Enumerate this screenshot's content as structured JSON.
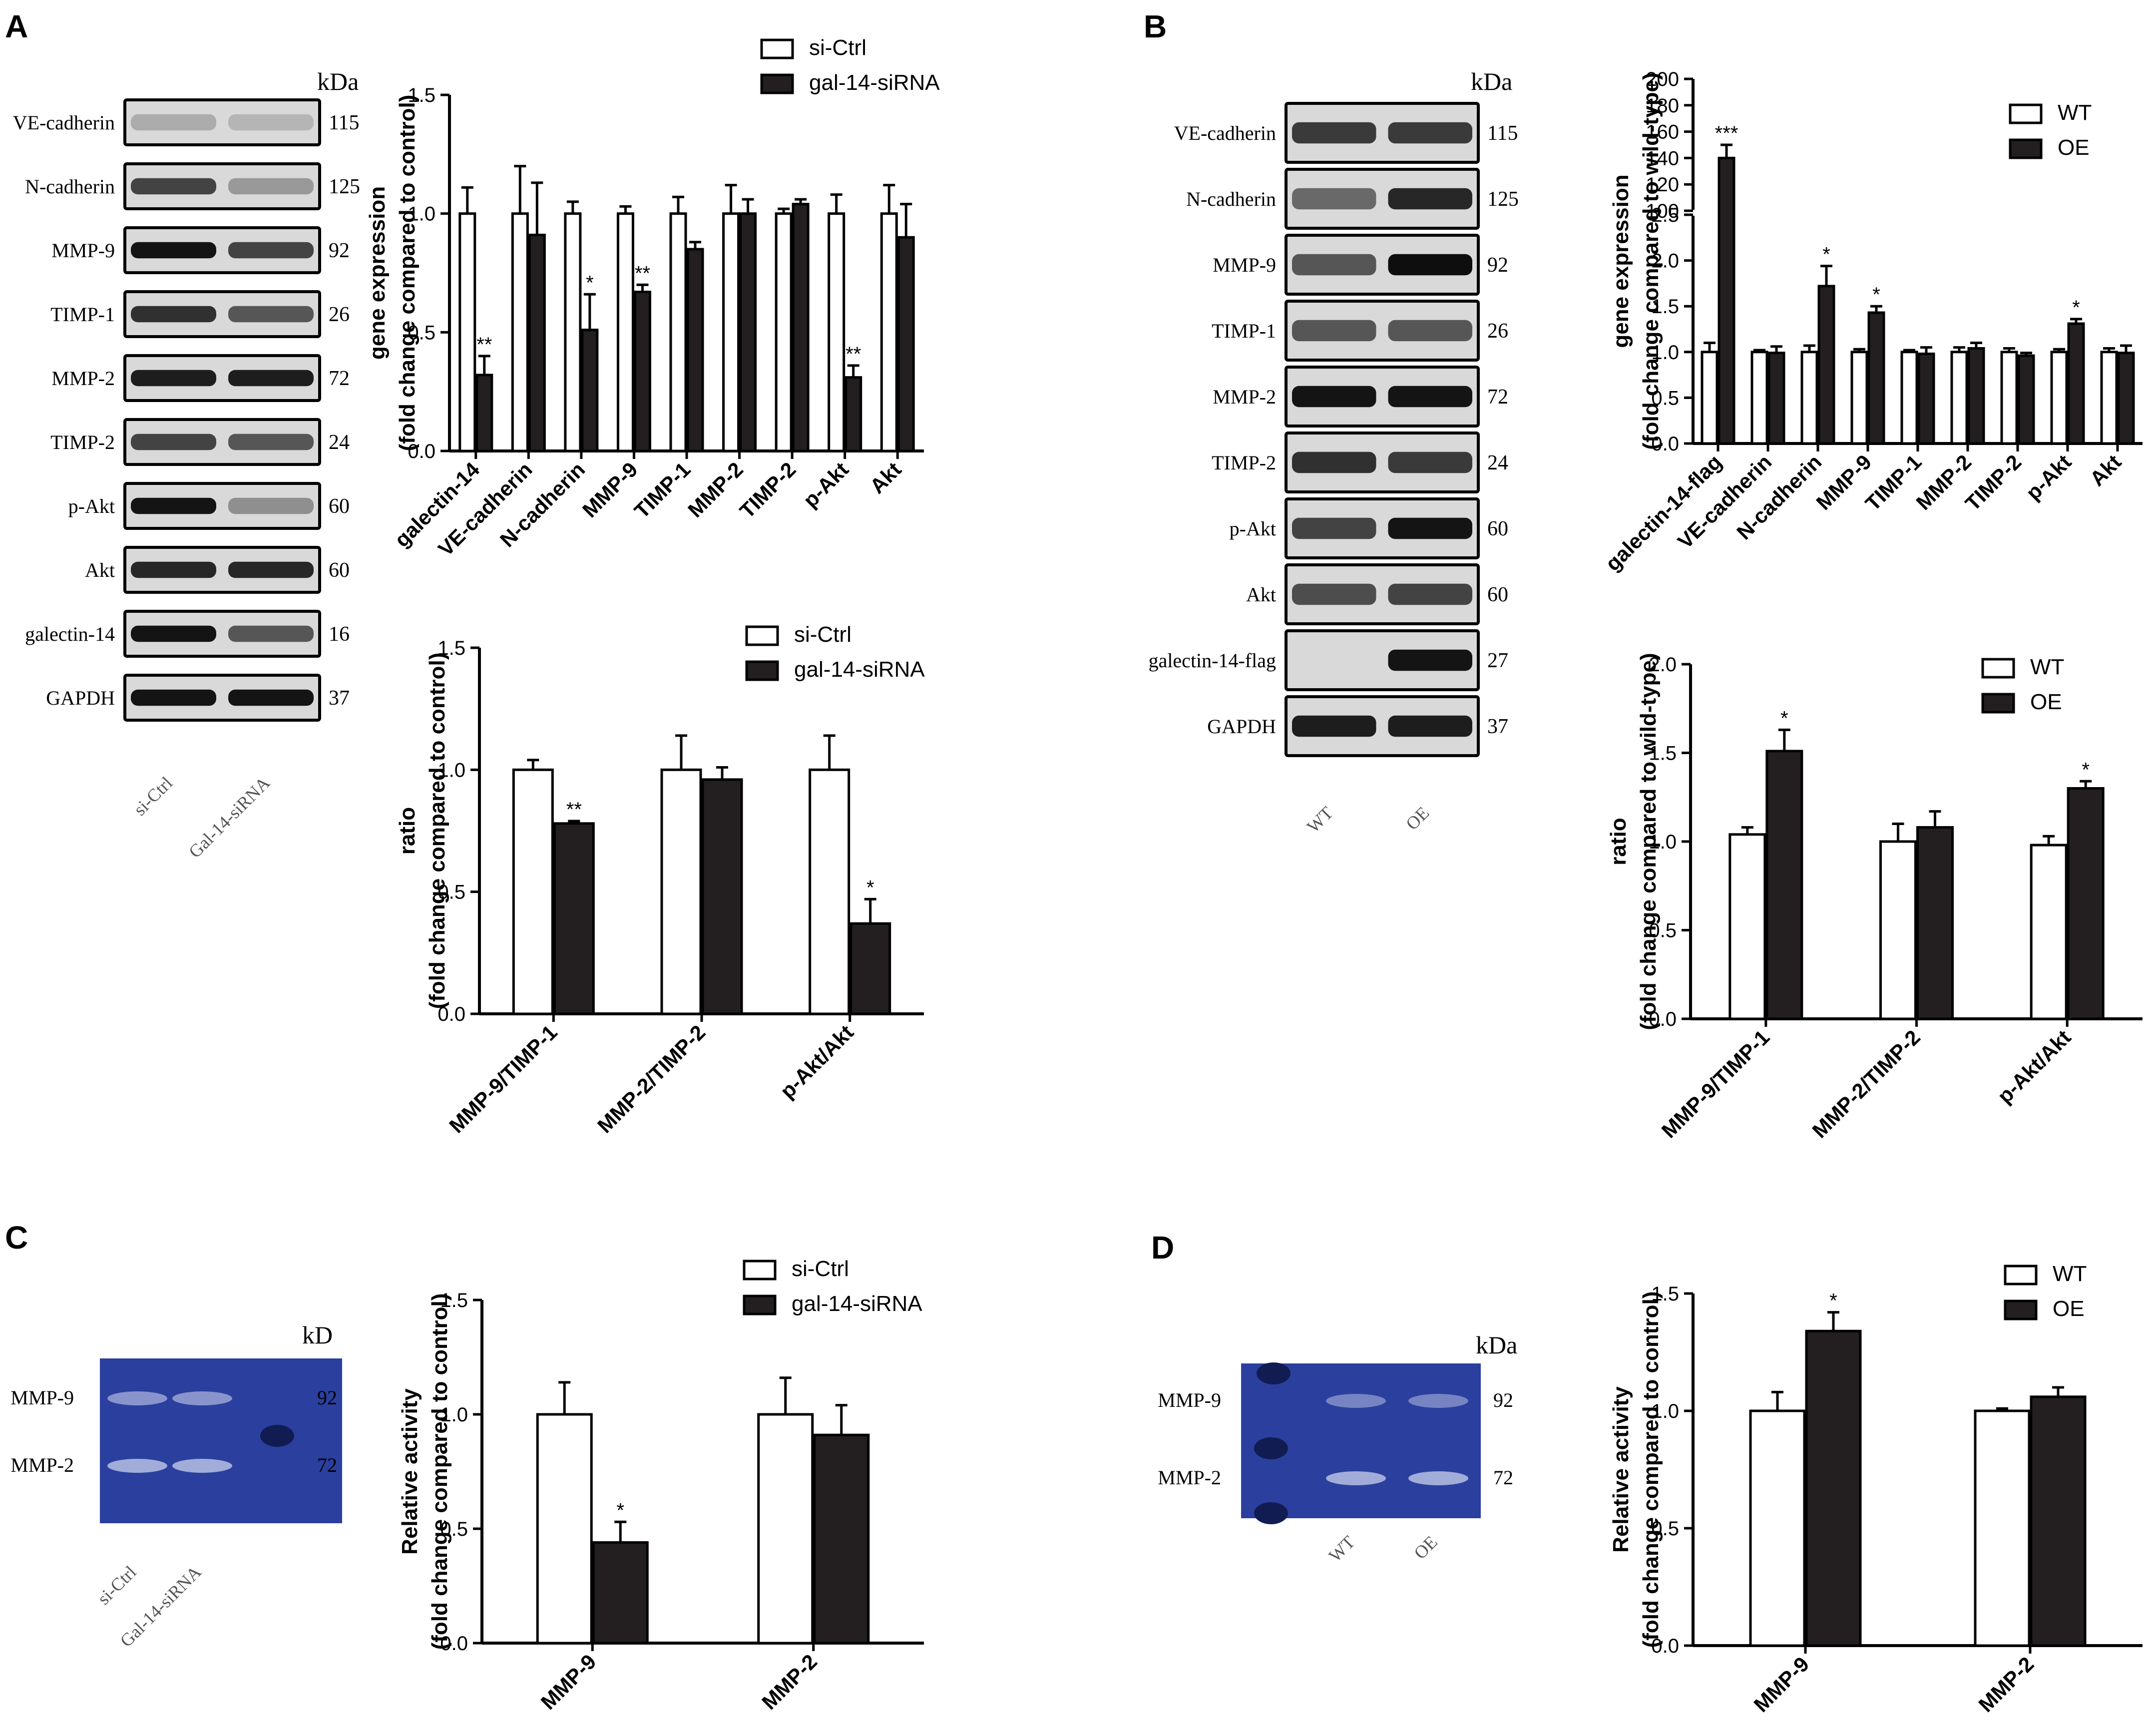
{
  "panel_labels": [
    "A",
    "B",
    "C",
    "D"
  ],
  "kda_label": "kDa",
  "kda_label_c": "kD",
  "blot_a": {
    "bands": [
      {
        "name": "VE-cadherin",
        "kda": "115"
      },
      {
        "name": "N-cadherin",
        "kda": "125"
      },
      {
        "name": "MMP-9",
        "kda": "92"
      },
      {
        "name": "TIMP-1",
        "kda": "26"
      },
      {
        "name": "MMP-2",
        "kda": "72"
      },
      {
        "name": "TIMP-2",
        "kda": "24"
      },
      {
        "name": "p-Akt",
        "kda": "60"
      },
      {
        "name": "Akt",
        "kda": "60"
      },
      {
        "name": "galectin-14",
        "kda": "16"
      },
      {
        "name": "GAPDH",
        "kda": "37"
      }
    ],
    "lanes": [
      "si-Ctrl",
      "Gal-14-siRNA"
    ]
  },
  "blot_b": {
    "bands": [
      {
        "name": "VE-cadherin",
        "kda": "115"
      },
      {
        "name": "N-cadherin",
        "kda": "125"
      },
      {
        "name": "MMP-9",
        "kda": "92"
      },
      {
        "name": "TIMP-1",
        "kda": "26"
      },
      {
        "name": "MMP-2",
        "kda": "72"
      },
      {
        "name": "TIMP-2",
        "kda": "24"
      },
      {
        "name": "p-Akt",
        "kda": "60"
      },
      {
        "name": "Akt",
        "kda": "60"
      },
      {
        "name": "galectin-14-flag",
        "kda": "27"
      },
      {
        "name": "GAPDH",
        "kda": "37"
      }
    ],
    "lanes": [
      "WT",
      "OE"
    ]
  },
  "zymo_c": {
    "bands": [
      {
        "name": "MMP-9",
        "kda": "92"
      },
      {
        "name": "MMP-2",
        "kda": "72"
      }
    ],
    "lanes": [
      "si-Ctrl",
      "Gal-14-siRNA"
    ]
  },
  "zymo_d": {
    "bands": [
      {
        "name": "MMP-9",
        "kda": "92"
      },
      {
        "name": "MMP-2",
        "kda": "72"
      }
    ],
    "lanes": [
      "WT",
      "OE"
    ]
  },
  "colors": {
    "open_bar": "#ffffff",
    "filled_bar": "#231f20",
    "axis": "#000000",
    "zymo_bg": "#2b3f9e",
    "zymo_band": "#a9b2dc"
  },
  "chart_data": [
    {
      "id": "A-top",
      "type": "bar",
      "ylabel": [
        "gene expression",
        "(fold change compared to control)"
      ],
      "ylim": [
        0,
        1.5
      ],
      "yticks": [
        "0.0",
        "0.5",
        "1.0",
        "1.5"
      ],
      "categories": [
        "galectin-14",
        "VE-cadherin",
        "N-cadherin",
        "MMP-9",
        "TIMP-1",
        "MMP-2",
        "TIMP-2",
        "p-Akt",
        "Akt"
      ],
      "series": [
        {
          "name": "si-Ctrl",
          "values": [
            1.0,
            1.0,
            1.0,
            1.0,
            1.0,
            1.0,
            1.0,
            1.0,
            1.0
          ],
          "errors": [
            0.11,
            0.2,
            0.05,
            0.03,
            0.07,
            0.12,
            0.02,
            0.08,
            0.12
          ]
        },
        {
          "name": "gal-14-siRNA",
          "values": [
            0.32,
            0.91,
            0.51,
            0.67,
            0.85,
            1.0,
            1.04,
            0.31,
            0.9
          ],
          "errors": [
            0.08,
            0.22,
            0.15,
            0.03,
            0.03,
            0.06,
            0.02,
            0.05,
            0.14
          ]
        }
      ],
      "annotations": [
        "**",
        "",
        "*",
        "**",
        "",
        "",
        "",
        "**",
        ""
      ]
    },
    {
      "id": "A-bottom",
      "type": "bar",
      "ylabel": [
        "ratio",
        "(fold change compared to control)"
      ],
      "ylim": [
        0,
        1.5
      ],
      "yticks": [
        "0.0",
        "0.5",
        "1.0",
        "1.5"
      ],
      "categories": [
        "MMP-9/TIMP-1",
        "MMP-2/TIMP-2",
        "p-Akt/Akt"
      ],
      "series": [
        {
          "name": "si-Ctrl",
          "values": [
            1.0,
            1.0,
            1.0
          ],
          "errors": [
            0.04,
            0.14,
            0.14
          ]
        },
        {
          "name": "gal-14-siRNA",
          "values": [
            0.78,
            0.96,
            0.37
          ],
          "errors": [
            0.01,
            0.05,
            0.1
          ]
        }
      ],
      "annotations": [
        "**",
        "",
        "*"
      ]
    },
    {
      "id": "B-top",
      "type": "bar",
      "ylabel": [
        "gene expression",
        "(fold change compared to wild-type)"
      ],
      "ylim_lower": [
        0,
        2.5
      ],
      "ylim_upper": [
        100,
        200
      ],
      "yticks_lower": [
        "0.0",
        "0.5",
        "1.0",
        "1.5",
        "2.0",
        "2.5"
      ],
      "yticks_upper": [
        "100",
        "120",
        "140",
        "160",
        "180",
        "200"
      ],
      "categories": [
        "galectin-14-flag",
        "VE-cadherin",
        "N-cadherin",
        "MMP-9",
        "TIMP-1",
        "MMP-2",
        "TIMP-2",
        "p-Akt",
        "Akt"
      ],
      "series": [
        {
          "name": "WT",
          "values": [
            1.0,
            1.0,
            1.0,
            1.0,
            1.0,
            1.0,
            1.0,
            1.0,
            1.0
          ],
          "errors": [
            0.1,
            0.02,
            0.07,
            0.03,
            0.02,
            0.05,
            0.04,
            0.03,
            0.04
          ]
        },
        {
          "name": "OE",
          "values": [
            140,
            0.99,
            1.72,
            1.43,
            0.98,
            1.04,
            0.96,
            1.31,
            0.99
          ],
          "errors": [
            10,
            0.07,
            0.22,
            0.07,
            0.07,
            0.06,
            0.03,
            0.05,
            0.08
          ]
        }
      ],
      "annotations": [
        "***",
        "",
        "*",
        "*",
        "",
        "",
        "",
        "*",
        ""
      ]
    },
    {
      "id": "B-bottom",
      "type": "bar",
      "ylabel": [
        "ratio",
        "(fold change compared to wild-type)"
      ],
      "ylim": [
        0,
        2.0
      ],
      "yticks": [
        "0.0",
        "0.5",
        "1.0",
        "1.5",
        "2.0"
      ],
      "categories": [
        "MMP-9/TIMP-1",
        "MMP-2/TIMP-2",
        "p-Akt/Akt"
      ],
      "series": [
        {
          "name": "WT",
          "values": [
            1.04,
            1.0,
            0.98
          ],
          "errors": [
            0.04,
            0.1,
            0.05
          ]
        },
        {
          "name": "OE",
          "values": [
            1.51,
            1.08,
            1.3
          ],
          "errors": [
            0.12,
            0.09,
            0.04
          ]
        }
      ],
      "annotations": [
        "*",
        "",
        "*"
      ]
    },
    {
      "id": "C",
      "type": "bar",
      "ylabel": [
        "Relative activity",
        "(fold change compared to control)"
      ],
      "ylim": [
        0,
        1.5
      ],
      "yticks": [
        "0.0",
        "0.5",
        "1.0",
        "1.5"
      ],
      "categories": [
        "MMP-9",
        "MMP-2"
      ],
      "series": [
        {
          "name": "si-Ctrl",
          "values": [
            1.0,
            1.0
          ],
          "errors": [
            0.14,
            0.16
          ]
        },
        {
          "name": "gal-14-siRNA",
          "values": [
            0.44,
            0.91
          ],
          "errors": [
            0.09,
            0.13
          ]
        }
      ],
      "annotations": [
        "*",
        ""
      ]
    },
    {
      "id": "D",
      "type": "bar",
      "ylabel": [
        "Relative activity",
        "(fold change compared to control)"
      ],
      "ylim": [
        0,
        1.5
      ],
      "yticks": [
        "0.0",
        "0.5",
        "1.0",
        "1.5"
      ],
      "categories": [
        "MMP-9",
        "MMP-2"
      ],
      "series": [
        {
          "name": "WT",
          "values": [
            1.0,
            1.0
          ],
          "errors": [
            0.08,
            0.01
          ]
        },
        {
          "name": "OE",
          "values": [
            1.34,
            1.06
          ],
          "errors": [
            0.08,
            0.04
          ]
        }
      ],
      "annotations": [
        "*",
        ""
      ]
    }
  ]
}
